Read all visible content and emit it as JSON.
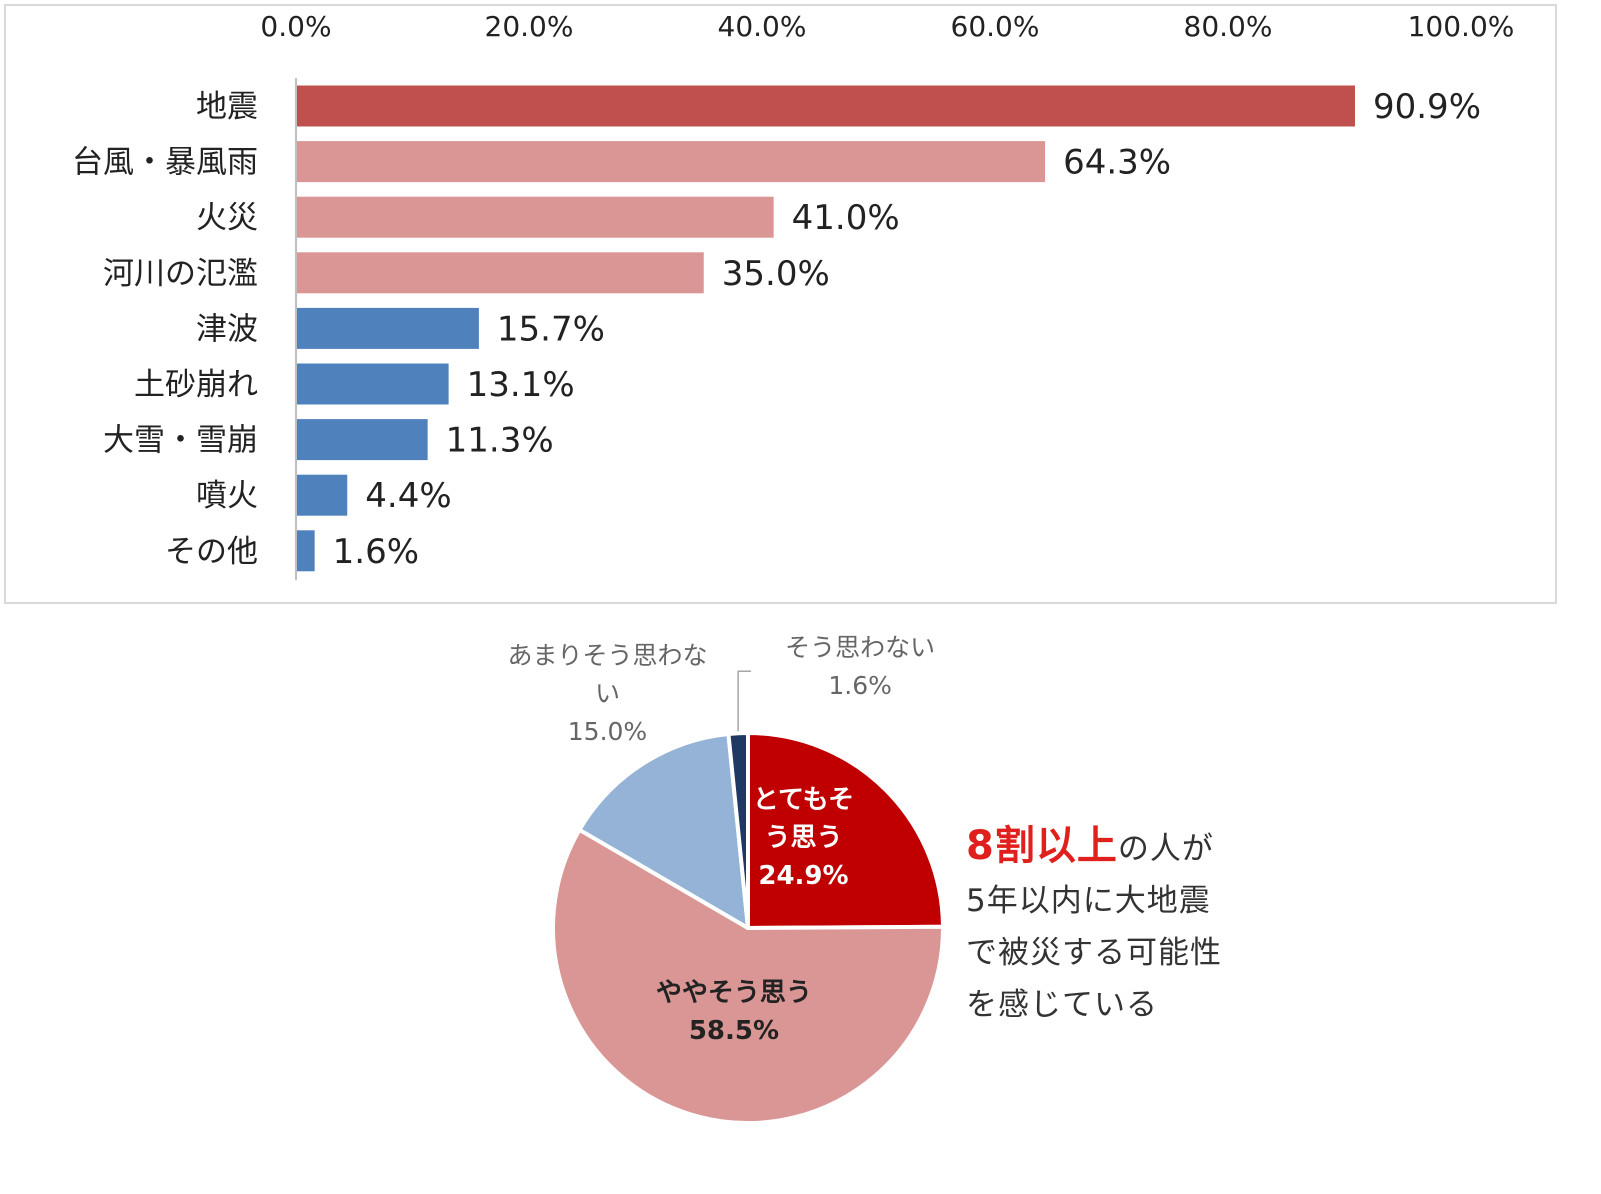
{
  "chart_data": [
    {
      "type": "bar",
      "orientation": "horizontal",
      "categories": [
        "地震",
        "台風・暴風雨",
        "火災",
        "河川の氾濫",
        "津波",
        "土砂崩れ",
        "大雪・雪崩",
        "噴火",
        "その他"
      ],
      "values": [
        90.9,
        64.3,
        41.0,
        35.0,
        15.7,
        13.1,
        11.3,
        4.4,
        1.6
      ],
      "value_labels": [
        "90.9%",
        "64.3%",
        "41.0%",
        "35.0%",
        "15.7%",
        "13.1%",
        "11.3%",
        "4.4%",
        "1.6%"
      ],
      "bar_colors": [
        "#c0504d",
        "#d99694",
        "#d99694",
        "#d99694",
        "#4f81bd",
        "#4f81bd",
        "#4f81bd",
        "#4f81bd",
        "#4f81bd"
      ],
      "xlim": [
        0,
        100
      ],
      "x_ticks": [
        "0.0%",
        "20.0%",
        "40.0%",
        "60.0%",
        "80.0%",
        "100.0%"
      ],
      "x_axis_position": "top",
      "grid": false
    },
    {
      "type": "pie",
      "slices": [
        {
          "label_lines": [
            "とてもそ",
            "う思う"
          ],
          "value": 24.9,
          "value_label": "24.9%",
          "color": "#c00000",
          "label_color": "#ffffff"
        },
        {
          "label_lines": [
            "ややそう思う"
          ],
          "value": 58.5,
          "value_label": "58.5%",
          "color": "#d99694",
          "label_color": "#222222"
        },
        {
          "label_lines": [
            "あまりそう思わな",
            "い"
          ],
          "value": 15.0,
          "value_label": "15.0%",
          "color": "#95b3d7",
          "label_color": "#666666"
        },
        {
          "label_lines": [
            "そう思わない"
          ],
          "value": 1.6,
          "value_label": "1.6%",
          "color": "#1f3864",
          "label_color": "#666666"
        }
      ],
      "start": "top",
      "direction": "clockwise"
    }
  ],
  "callout": {
    "highlight": "8割以上",
    "line1_rest": "の人が",
    "line2": "5年以内に大地震",
    "line3": "で被災する可能性",
    "line4": "を感じている"
  },
  "colors": {
    "highlight": "#e0201c",
    "axis": "#bfbfbf"
  }
}
